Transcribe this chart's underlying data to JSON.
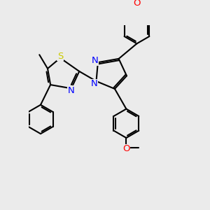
{
  "bg_color": "#ebebeb",
  "bond_color": "#000000",
  "bond_width": 1.5,
  "atom_colors": {
    "N": "#0000ff",
    "S": "#cccc00",
    "O": "#ff0000",
    "C": "#000000"
  },
  "font_size": 8.5
}
